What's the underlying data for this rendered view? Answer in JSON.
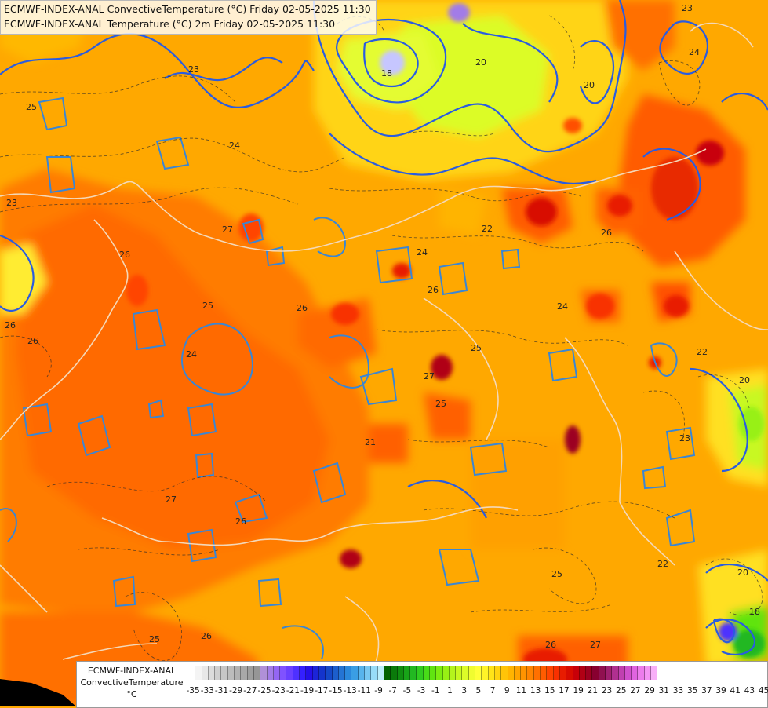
{
  "header": {
    "line1": "ECMWF-INDEX-ANAL ConvectiveTemperature (°C) Friday 02-05-2025 11:30",
    "line2": "ECMWF-INDEX-ANAL Temperature (°C) 2m Friday 02-05-2025 11:30"
  },
  "legend": {
    "title1": "ECMWF-INDEX-ANAL",
    "title2": "ConvectiveTemperature",
    "unit": "°C",
    "tick_labels": [
      "-35",
      "-33",
      "-31",
      "-29",
      "-27",
      "-25",
      "-23",
      "-21",
      "-19",
      "-17",
      "-15",
      "-13",
      "-11",
      "-9",
      "-7",
      "-5",
      "-3",
      "-1",
      "1",
      "3",
      "5",
      "7",
      "9",
      "11",
      "13",
      "15",
      "17",
      "19",
      "21",
      "23",
      "25",
      "27",
      "29",
      "31",
      "33",
      "35",
      "37",
      "39",
      "41",
      "43",
      "45"
    ],
    "swatch_colors": [
      "#ffffff",
      "#f4f4f4",
      "#e8e8e8",
      "#dcdcdc",
      "#d0d0d0",
      "#c6c6c6",
      "#bcbcbc",
      "#b2b2b2",
      "#a8a8a8",
      "#9e9e9e",
      "#969696",
      "#b090d8",
      "#a27ce8",
      "#9466f4",
      "#8052ff",
      "#6a40ff",
      "#4e30ff",
      "#3420ff",
      "#2410e8",
      "#1c24d8",
      "#1434cc",
      "#1448c8",
      "#1c5ecc",
      "#2474d4",
      "#2a88dc",
      "#3a9ee4",
      "#58b4ec",
      "#78c8f2",
      "#98dcf8",
      "#bceefc",
      "#036403",
      "#0a7a0a",
      "#108e10",
      "#18a418",
      "#22b822",
      "#30cc20",
      "#48dc18",
      "#60e410",
      "#7cec10",
      "#98f014",
      "#b4f41c",
      "#c8f820",
      "#dcfc28",
      "#f0fc30",
      "#ffff38",
      "#fff428",
      "#ffe418",
      "#ffd410",
      "#ffc408",
      "#ffb400",
      "#ffa400",
      "#ff9400",
      "#ff8400",
      "#ff7000",
      "#ff5c00",
      "#ff4400",
      "#f83000",
      "#e81c00",
      "#d80c00",
      "#c80008",
      "#b00014",
      "#9c0020",
      "#880030",
      "#901050",
      "#a02070",
      "#b03090",
      "#c040b0",
      "#d050cc",
      "#e064e0",
      "#ec7cec",
      "#f494f4",
      "#f8b0f8"
    ]
  },
  "contour_labels": [
    {
      "text": "18"
    },
    {
      "text": "20"
    },
    {
      "text": "20"
    },
    {
      "text": "23"
    },
    {
      "text": "24"
    },
    {
      "text": "25"
    },
    {
      "text": "23"
    },
    {
      "text": "24"
    },
    {
      "text": "22"
    },
    {
      "text": "27"
    },
    {
      "text": "26"
    },
    {
      "text": "24"
    },
    {
      "text": "25"
    },
    {
      "text": "26"
    },
    {
      "text": "26"
    },
    {
      "text": "27"
    },
    {
      "text": "25"
    },
    {
      "text": "21"
    },
    {
      "text": "24"
    },
    {
      "text": "25"
    },
    {
      "text": "26"
    },
    {
      "text": "23"
    },
    {
      "text": "22"
    },
    {
      "text": "23"
    },
    {
      "text": "26"
    },
    {
      "text": "27"
    },
    {
      "text": "26"
    },
    {
      "text": "25"
    },
    {
      "text": "26"
    },
    {
      "text": "22"
    },
    {
      "text": "20"
    },
    {
      "text": "20"
    },
    {
      "text": "18"
    },
    {
      "text": "26"
    },
    {
      "text": "27"
    },
    {
      "text": "25"
    },
    {
      "text": "26"
    },
    {
      "text": "24"
    }
  ]
}
